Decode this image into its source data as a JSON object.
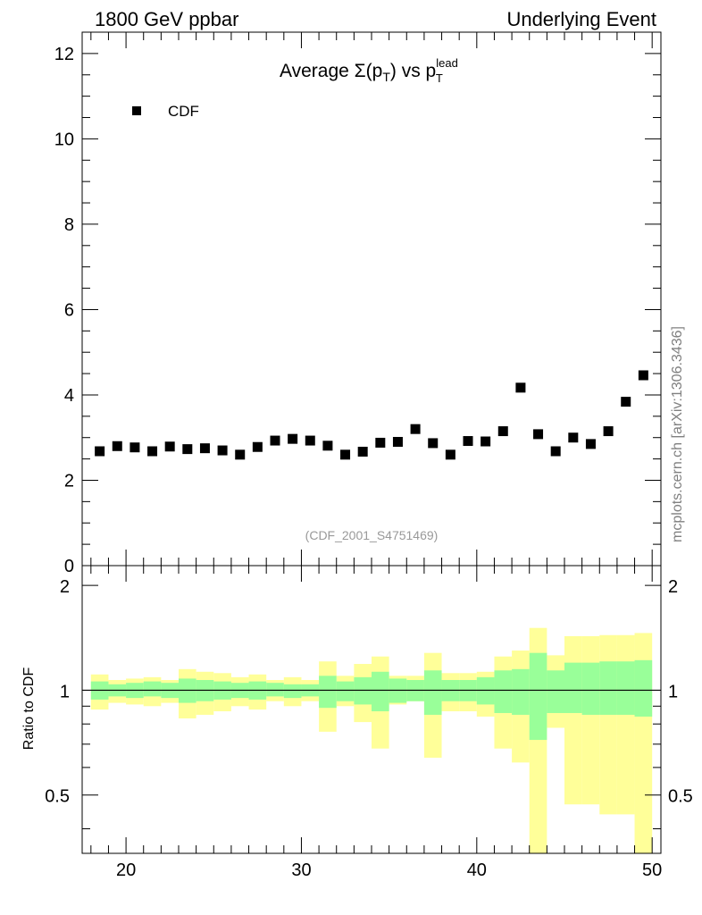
{
  "header": {
    "left": "1800 GeV ppbar",
    "right": "Underlying Event"
  },
  "watermark": "mcplots.cern.ch [arXiv:1306.3436]",
  "chart_data": [
    {
      "type": "scatter",
      "title": "Average Σ(pT) vs pTlead",
      "title_parts": {
        "main": "Average Σ(p",
        "sub1": "T",
        "mid": ") vs p",
        "sup": "lead",
        "sub2": "T"
      },
      "legend": [
        {
          "label": "CDF",
          "marker": "square",
          "color": "#000000",
          "placement": "top-left"
        }
      ],
      "annotation": "(CDF_2001_S4751469)",
      "xlim": [
        17.5,
        50.5
      ],
      "ylim": [
        0,
        12.5
      ],
      "yticks": [
        0,
        2,
        4,
        6,
        8,
        10,
        12
      ],
      "series": [
        {
          "name": "CDF",
          "x": [
            18.5,
            19.5,
            20.5,
            21.5,
            22.5,
            23.5,
            24.5,
            25.5,
            26.5,
            27.5,
            28.5,
            29.5,
            30.5,
            31.5,
            32.5,
            33.5,
            34.5,
            35.5,
            36.5,
            37.5,
            38.5,
            39.5,
            40.5,
            41.5,
            42.5,
            43.5,
            44.5,
            45.5,
            46.5,
            47.5,
            48.5,
            49.5
          ],
          "values": [
            2.68,
            2.8,
            2.77,
            2.68,
            2.79,
            2.73,
            2.75,
            2.7,
            2.6,
            2.78,
            2.93,
            2.97,
            2.93,
            2.81,
            2.6,
            2.67,
            2.88,
            2.9,
            3.2,
            2.87,
            2.6,
            2.92,
            2.91,
            3.15,
            4.17,
            3.08,
            2.68,
            3.0,
            2.85,
            3.15,
            3.84,
            4.46
          ]
        }
      ]
    },
    {
      "type": "area",
      "ylabel": "Ratio to CDF",
      "xlim": [
        17.5,
        50.5
      ],
      "ylim": [
        0.34,
        2.28
      ],
      "xticks": [
        20,
        30,
        40,
        50
      ],
      "yticks": [
        0.5,
        1,
        2
      ],
      "reference_line": 1.0,
      "bins": [
        18,
        19,
        20,
        21,
        22,
        23,
        24,
        25,
        26,
        27,
        28,
        29,
        30,
        31,
        32,
        33,
        34,
        35,
        36,
        37,
        38,
        39,
        40,
        41,
        42,
        43,
        44,
        45,
        46,
        47,
        48,
        49,
        50
      ],
      "band_inner": {
        "name": "stat",
        "color": "#99ff99",
        "low": [
          0.94,
          0.96,
          0.95,
          0.96,
          0.95,
          0.92,
          0.93,
          0.94,
          0.95,
          0.94,
          0.96,
          0.95,
          0.96,
          0.89,
          0.93,
          0.91,
          0.87,
          0.92,
          0.93,
          0.85,
          0.93,
          0.93,
          0.91,
          0.86,
          0.85,
          0.72,
          0.86,
          0.86,
          0.85,
          0.85,
          0.85,
          0.84
        ],
        "high": [
          1.06,
          1.04,
          1.05,
          1.06,
          1.05,
          1.08,
          1.07,
          1.06,
          1.05,
          1.06,
          1.05,
          1.04,
          1.04,
          1.1,
          1.06,
          1.09,
          1.13,
          1.08,
          1.07,
          1.14,
          1.07,
          1.07,
          1.09,
          1.14,
          1.15,
          1.28,
          1.14,
          1.2,
          1.2,
          1.21,
          1.21,
          1.22
        ]
      },
      "band_outer": {
        "name": "total",
        "color": "#ffff99",
        "low": [
          0.88,
          0.92,
          0.91,
          0.9,
          0.92,
          0.83,
          0.85,
          0.87,
          0.9,
          0.88,
          0.93,
          0.9,
          0.93,
          0.76,
          0.9,
          0.81,
          0.68,
          0.91,
          0.93,
          0.64,
          0.87,
          0.87,
          0.84,
          0.68,
          0.62,
          0.34,
          0.78,
          0.47,
          0.47,
          0.44,
          0.44,
          0.34
        ],
        "high": [
          1.11,
          1.07,
          1.08,
          1.09,
          1.07,
          1.15,
          1.13,
          1.12,
          1.09,
          1.11,
          1.07,
          1.09,
          1.07,
          1.21,
          1.1,
          1.19,
          1.25,
          1.1,
          1.1,
          1.28,
          1.12,
          1.12,
          1.13,
          1.25,
          1.3,
          1.51,
          1.26,
          1.43,
          1.43,
          1.44,
          1.44,
          1.46
        ]
      }
    }
  ]
}
